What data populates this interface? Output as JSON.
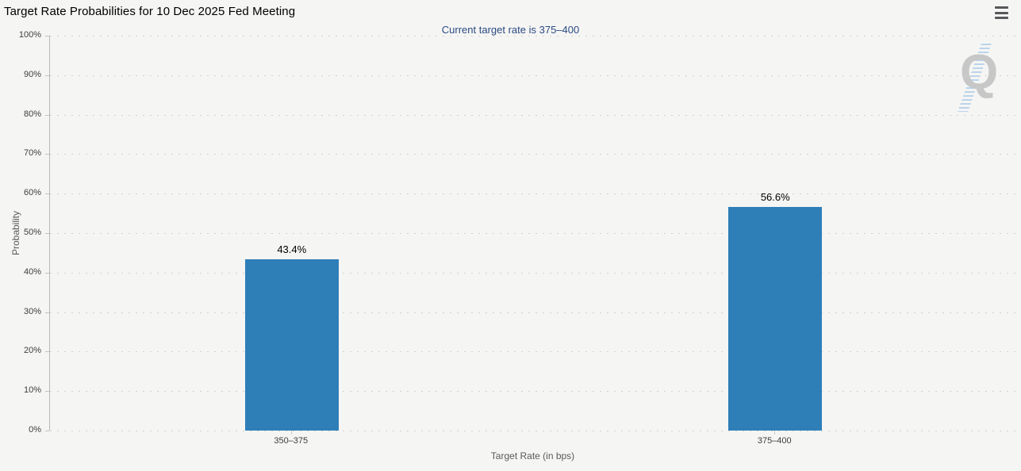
{
  "header": {
    "title": "Target Rate Probabilities for 10 Dec 2025 Fed Meeting"
  },
  "menu": {
    "icon": "hamburger-icon"
  },
  "watermark": {
    "label": "Q"
  },
  "chart_data": {
    "type": "bar",
    "title": "Target Rate Probabilities for 10 Dec 2025 Fed Meeting",
    "subtitle": "Current target rate is 375–400",
    "categories": [
      "350–375",
      "375–400"
    ],
    "values": [
      43.4,
      56.6
    ],
    "value_labels": [
      "43.4%",
      "56.6%"
    ],
    "xlabel": "Target Rate (in bps)",
    "ylabel": "Probability",
    "ylim": [
      0,
      100
    ],
    "ytick_step": 10,
    "ytick_suffix": "%",
    "grid": "dotted-horizontal",
    "legend_position": "none",
    "bar_color": "#2e7eb8",
    "subtitle_color": "#2c4a80"
  }
}
